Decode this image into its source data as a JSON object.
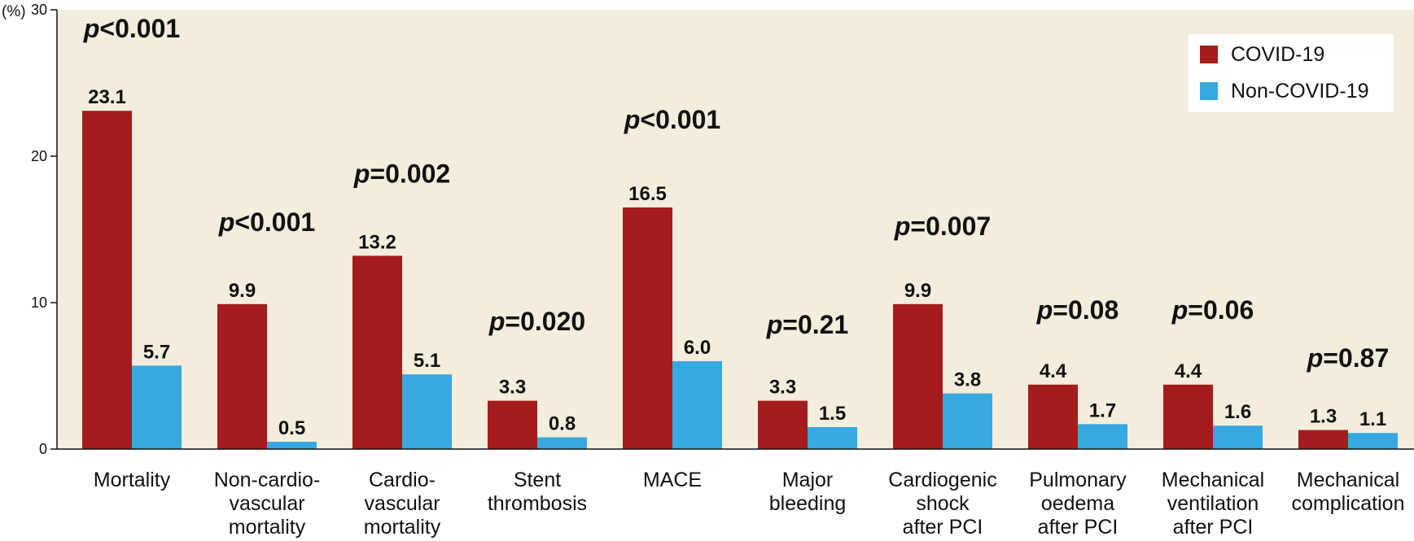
{
  "chart_data": {
    "type": "bar",
    "ylabel": "(%)",
    "ylim": [
      0,
      30
    ],
    "yticks": [
      0,
      10,
      20,
      30
    ],
    "legend_position": "top-right",
    "categories": [
      [
        "Mortality"
      ],
      [
        "Non-cardio-",
        "vascular",
        "mortality"
      ],
      [
        "Cardio-",
        "vascular",
        "mortality"
      ],
      [
        "Stent",
        "thrombosis"
      ],
      [
        "MACE"
      ],
      [
        "Major",
        "bleeding"
      ],
      [
        "Cardiogenic",
        "shock",
        "after PCI"
      ],
      [
        "Pulmonary",
        "oedema",
        "after PCI"
      ],
      [
        "Mechanical",
        "ventilation",
        "after PCI"
      ],
      [
        "Mechanical",
        "complication"
      ]
    ],
    "series": [
      {
        "name": "COVID-19",
        "color": "#a51c1c",
        "values": [
          23.1,
          9.9,
          13.2,
          3.3,
          16.5,
          3.3,
          9.9,
          4.4,
          4.4,
          1.3
        ],
        "labels": [
          "23.1",
          "9.9",
          "13.2",
          "3.3",
          "16.5",
          "3.3",
          "9.9",
          "4.4",
          "4.4",
          "1.3"
        ]
      },
      {
        "name": "Non-COVID-19",
        "color": "#38a8e0",
        "values": [
          5.7,
          0.5,
          5.1,
          0.8,
          6.0,
          1.5,
          3.8,
          1.7,
          1.6,
          1.1
        ],
        "labels": [
          "5.7",
          "0.5",
          "5.1",
          "0.8",
          "6.0",
          "1.5",
          "3.8",
          "1.7",
          "1.6",
          "1.1"
        ]
      }
    ],
    "annotations": [
      {
        "p": "p",
        "rest": "<0.001",
        "y": 28.1
      },
      {
        "p": "p",
        "rest": "<0.001",
        "y": 14.9
      },
      {
        "p": "p",
        "rest": "=0.002",
        "y": 18.2
      },
      {
        "p": "p",
        "rest": "=0.020",
        "y": 8.1
      },
      {
        "p": "p",
        "rest": "<0.001",
        "y": 21.9
      },
      {
        "p": "p",
        "rest": "=0.21",
        "y": 7.9
      },
      {
        "p": "p",
        "rest": "=0.007",
        "y": 14.6
      },
      {
        "p": "p",
        "rest": "=0.08",
        "y": 8.9
      },
      {
        "p": "p",
        "rest": "=0.06",
        "y": 8.9
      },
      {
        "p": "p",
        "rest": "=0.87",
        "y": 5.6
      }
    ],
    "plot_background": "#f2eddc"
  }
}
